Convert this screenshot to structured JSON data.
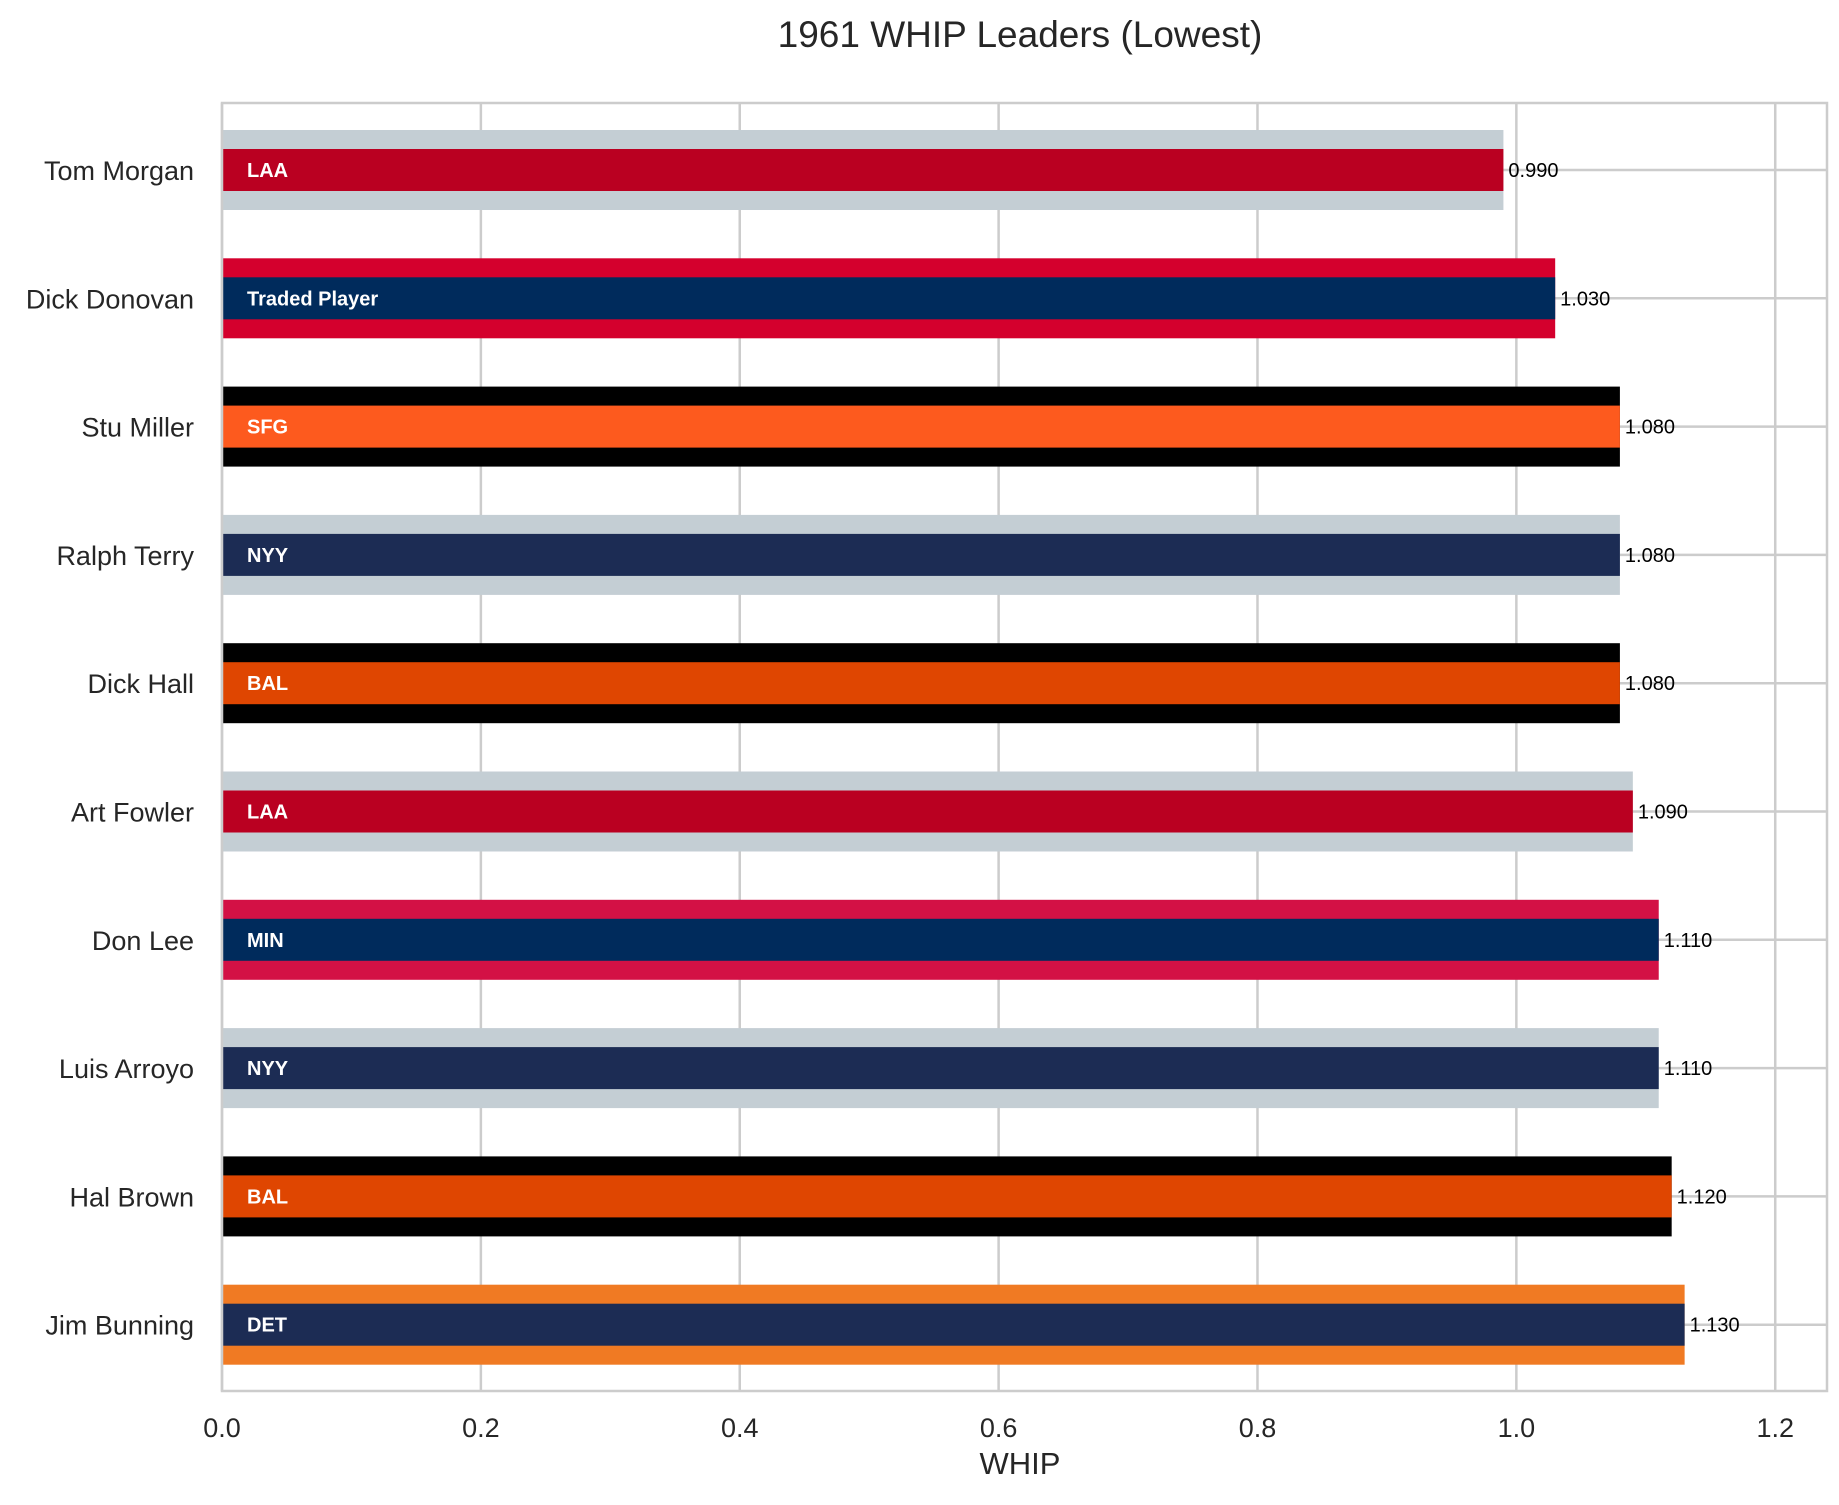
{
  "chart_data": {
    "type": "bar",
    "orientation": "horizontal",
    "title": "1961 WHIP Leaders (Lowest)",
    "xlabel": "WHIP",
    "ylabel": "",
    "xlim": [
      0,
      1.24
    ],
    "xticks": [
      0.0,
      0.2,
      0.4,
      0.6,
      0.8,
      1.0,
      1.2
    ],
    "xtick_labels": [
      "0.0",
      "0.2",
      "0.4",
      "0.6",
      "0.8",
      "1.0",
      "1.2"
    ],
    "grid": true,
    "value_label_format": "3 decimals",
    "bars": [
      {
        "player": "Tom Morgan",
        "team": "LAA",
        "value": 0.99,
        "value_label": "0.990",
        "color": "#BA0021",
        "stripe_color": "#C4CED4"
      },
      {
        "player": "Dick Donovan",
        "team": "Traded Player",
        "value": 1.03,
        "value_label": "1.030",
        "color": "#002B5C",
        "stripe_color": "#D4002D"
      },
      {
        "player": "Stu Miller",
        "team": "SFG",
        "value": 1.08,
        "value_label": "1.080",
        "color": "#FD5A1E",
        "stripe_color": "#000000"
      },
      {
        "player": "Ralph Terry",
        "team": "NYY",
        "value": 1.08,
        "value_label": "1.080",
        "color": "#1C2C54",
        "stripe_color": "#C4CED4"
      },
      {
        "player": "Dick Hall",
        "team": "BAL",
        "value": 1.08,
        "value_label": "1.080",
        "color": "#DF4601",
        "stripe_color": "#000000"
      },
      {
        "player": "Art Fowler",
        "team": "LAA",
        "value": 1.09,
        "value_label": "1.090",
        "color": "#BA0021",
        "stripe_color": "#C4CED4"
      },
      {
        "player": "Don Lee",
        "team": "MIN",
        "value": 1.11,
        "value_label": "1.110",
        "color": "#002B5C",
        "stripe_color": "#D31145"
      },
      {
        "player": "Luis Arroyo",
        "team": "NYY",
        "value": 1.11,
        "value_label": "1.110",
        "color": "#1C2C54",
        "stripe_color": "#C4CED4"
      },
      {
        "player": "Hal Brown",
        "team": "BAL",
        "value": 1.12,
        "value_label": "1.120",
        "color": "#DF4601",
        "stripe_color": "#000000"
      },
      {
        "player": "Jim Bunning",
        "team": "DET",
        "value": 1.13,
        "value_label": "1.130",
        "color": "#1C2C54",
        "stripe_color": "#F07A23"
      }
    ]
  }
}
